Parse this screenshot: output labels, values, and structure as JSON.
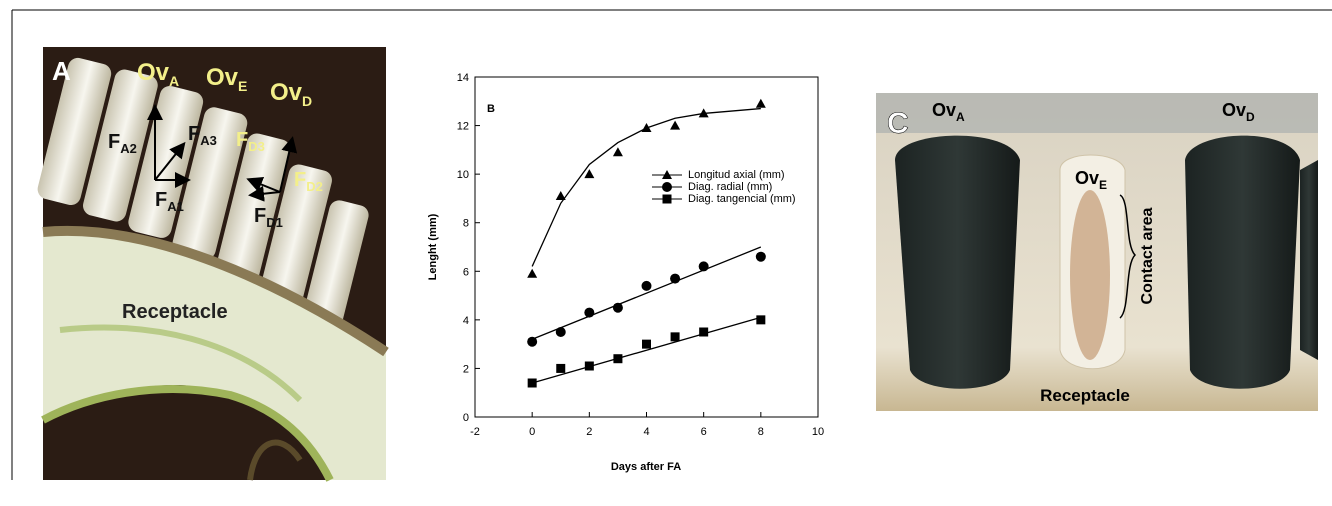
{
  "panel_a": {
    "letter": "A",
    "labels": [
      {
        "main": "Ov",
        "sub": "A"
      },
      {
        "main": "Ov",
        "sub": "E"
      },
      {
        "main": "Ov",
        "sub": "D"
      },
      {
        "main": "F",
        "sub": "A2"
      },
      {
        "main": "F",
        "sub": "A3"
      },
      {
        "main": "F",
        "sub": "A1"
      },
      {
        "main": "F",
        "sub": "D3"
      },
      {
        "main": "F",
        "sub": "D2"
      },
      {
        "main": "F",
        "sub": "D1"
      }
    ],
    "receptacle": "Receptacle"
  },
  "chart_data": {
    "type": "scatter",
    "letter": "B",
    "x_label": "Days after FA",
    "y_label": "Lenght (mm)",
    "xlim": [
      -2,
      10
    ],
    "xticks": [
      -2,
      0,
      2,
      4,
      6,
      8,
      10
    ],
    "ylim": [
      0,
      14
    ],
    "yticks": [
      0,
      2,
      4,
      6,
      8,
      10,
      12,
      14
    ],
    "x": [
      0,
      1,
      2,
      3,
      4,
      5,
      6,
      8
    ],
    "series": [
      {
        "name": "Longitud axial (mm)",
        "marker": "triangle",
        "color": "#000000",
        "values": [
          5.9,
          9.1,
          10.0,
          10.9,
          11.9,
          12.0,
          12.5,
          12.9
        ],
        "fit": {
          "x": [
            0,
            1,
            2,
            3,
            4,
            5,
            6,
            8
          ],
          "values": [
            6.2,
            8.8,
            10.4,
            11.3,
            11.9,
            12.3,
            12.5,
            12.7
          ]
        }
      },
      {
        "name": "Diag. radial (mm)",
        "marker": "circle",
        "color": "#000000",
        "values": [
          3.1,
          3.5,
          4.3,
          4.5,
          5.4,
          5.7,
          6.2,
          6.6
        ],
        "fit": {
          "x": [
            0,
            8
          ],
          "values": [
            3.2,
            7.0
          ]
        }
      },
      {
        "name": "Diag. tangencial (mm)",
        "marker": "square",
        "color": "#000000",
        "values": [
          1.4,
          2.0,
          2.1,
          2.4,
          3.0,
          3.3,
          3.5,
          4.0
        ],
        "fit": {
          "x": [
            0,
            8
          ],
          "values": [
            1.4,
            4.1
          ]
        }
      }
    ]
  },
  "panel_c": {
    "letter": "C",
    "labels": [
      {
        "main": "Ov",
        "sub": "A"
      },
      {
        "main": "Ov",
        "sub": "D"
      },
      {
        "main": "Ov",
        "sub": "E"
      }
    ],
    "contact": "Contact area",
    "receptacle": "Receptacle"
  }
}
